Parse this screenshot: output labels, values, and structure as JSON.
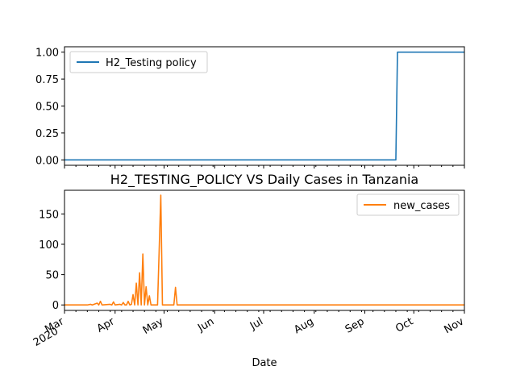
{
  "chart_data": [
    {
      "type": "line",
      "legend_placement": "top-left",
      "grid": false,
      "xlim": [
        "2020-03-01",
        "2020-11-01"
      ],
      "ylim": [
        -0.05,
        1.05
      ],
      "yticks": [
        0.0,
        0.25,
        0.5,
        0.75,
        1.0
      ],
      "ytick_labels": [
        "0.00",
        "0.25",
        "0.50",
        "0.75",
        "1.00"
      ],
      "series": [
        {
          "name": "H2_Testing policy",
          "color": "#1f77b4",
          "points": [
            [
              "2020-03-01",
              0
            ],
            [
              "2020-09-20",
              0
            ],
            [
              "2020-09-21",
              1
            ],
            [
              "2020-11-01",
              1
            ]
          ]
        }
      ]
    },
    {
      "type": "line",
      "title": "H2_TESTING_POLICY VS Daily Cases in Tanzania",
      "xlabel": "Date",
      "legend_placement": "top-right",
      "grid": false,
      "xlim": [
        "2020-03-01",
        "2020-11-01"
      ],
      "ylim": [
        -9,
        189
      ],
      "yticks": [
        0,
        50,
        100,
        150
      ],
      "ytick_labels": [
        "0",
        "50",
        "100",
        "150"
      ],
      "xtick_labels": [
        {
          "date": "2020-03-01",
          "label": "Mar",
          "sub": "2020"
        },
        {
          "date": "2020-04-01",
          "label": "Apr"
        },
        {
          "date": "2020-05-01",
          "label": "May"
        },
        {
          "date": "2020-06-01",
          "label": "Jun"
        },
        {
          "date": "2020-07-01",
          "label": "Jul"
        },
        {
          "date": "2020-08-01",
          "label": "Aug"
        },
        {
          "date": "2020-09-01",
          "label": "Sep"
        },
        {
          "date": "2020-10-01",
          "label": "Oct"
        },
        {
          "date": "2020-11-01",
          "label": "Nov"
        }
      ],
      "series": [
        {
          "name": "new_cases",
          "color": "#ff7f0e",
          "points": [
            [
              "2020-03-01",
              0
            ],
            [
              "2020-03-15",
              0
            ],
            [
              "2020-03-17",
              1
            ],
            [
              "2020-03-18",
              0
            ],
            [
              "2020-03-21",
              3
            ],
            [
              "2020-03-22",
              0
            ],
            [
              "2020-03-23",
              6
            ],
            [
              "2020-03-24",
              0
            ],
            [
              "2020-03-29",
              1
            ],
            [
              "2020-03-30",
              0
            ],
            [
              "2020-03-31",
              5
            ],
            [
              "2020-04-01",
              0
            ],
            [
              "2020-04-04",
              1
            ],
            [
              "2020-04-05",
              0
            ],
            [
              "2020-04-06",
              4
            ],
            [
              "2020-04-07",
              0
            ],
            [
              "2020-04-08",
              0
            ],
            [
              "2020-04-09",
              6
            ],
            [
              "2020-04-10",
              0
            ],
            [
              "2020-04-11",
              1
            ],
            [
              "2020-04-12",
              17
            ],
            [
              "2020-04-13",
              0
            ],
            [
              "2020-04-14",
              36
            ],
            [
              "2020-04-15",
              0
            ],
            [
              "2020-04-16",
              53
            ],
            [
              "2020-04-17",
              0
            ],
            [
              "2020-04-18",
              84
            ],
            [
              "2020-04-19",
              0
            ],
            [
              "2020-04-20",
              30
            ],
            [
              "2020-04-21",
              0
            ],
            [
              "2020-04-22",
              15
            ],
            [
              "2020-04-23",
              0
            ],
            [
              "2020-04-27",
              0
            ],
            [
              "2020-04-29",
              181
            ],
            [
              "2020-04-30",
              0
            ],
            [
              "2020-05-07",
              0
            ],
            [
              "2020-05-08",
              29
            ],
            [
              "2020-05-09",
              0
            ],
            [
              "2020-11-01",
              0
            ]
          ]
        }
      ]
    }
  ]
}
